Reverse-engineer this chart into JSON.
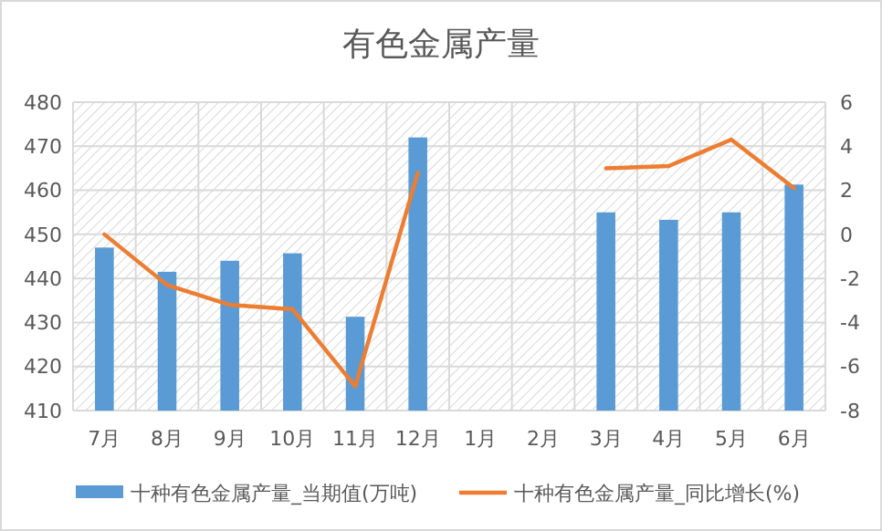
{
  "chart_data": {
    "type": "bar",
    "title": "有色金属产量",
    "categories": [
      "7月",
      "8月",
      "9月",
      "10月",
      "11月",
      "12月",
      "1月",
      "2月",
      "3月",
      "4月",
      "5月",
      "6月"
    ],
    "series": [
      {
        "name": "十种有色金属产量_当期值(万吨)",
        "color": "#5b9bd5",
        "values": [
          447,
          441.5,
          444,
          445.7,
          431.3,
          472,
          null,
          null,
          455,
          453.3,
          455,
          461.3
        ]
      },
      {
        "name": "十种有色金属产量_同比增长(%)",
        "type": "line",
        "axis": "y2",
        "color": "#ed7d31",
        "values": [
          0,
          -2.3,
          -3.2,
          -3.4,
          -6.9,
          2.8,
          null,
          null,
          3.0,
          3.1,
          4.3,
          2.1
        ]
      }
    ],
    "ylim": [
      410,
      480
    ],
    "yticks": [
      410,
      420,
      430,
      440,
      450,
      460,
      470,
      480
    ],
    "y2lim": [
      -8,
      6
    ],
    "y2ticks": [
      -8,
      -6,
      -4,
      -2,
      0,
      2,
      4,
      6
    ],
    "grid": true,
    "legend": "bottom",
    "line_style": "solid",
    "marker": "none"
  }
}
